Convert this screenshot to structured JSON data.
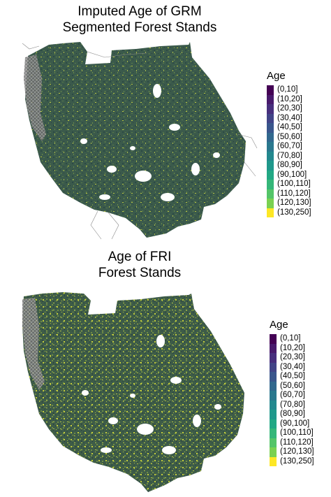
{
  "top_panel": {
    "title_line1": "Imputed Age of GRM",
    "title_line2": "Segmented Forest Stands"
  },
  "bottom_panel": {
    "title_line1": "Age of FRI",
    "title_line2": "Forest Stands"
  },
  "legend": {
    "title": "Age",
    "items": [
      {
        "label": "(0,10]",
        "color": "#440154"
      },
      {
        "label": "(10,20]",
        "color": "#481a6c"
      },
      {
        "label": "(20,30]",
        "color": "#472f7d"
      },
      {
        "label": "(30,40]",
        "color": "#414487"
      },
      {
        "label": "(40,50]",
        "color": "#39568c"
      },
      {
        "label": "(50,60]",
        "color": "#31688e"
      },
      {
        "label": "(60,70]",
        "color": "#2a788e"
      },
      {
        "label": "(70,80]",
        "color": "#23888e"
      },
      {
        "label": "(80,90]",
        "color": "#1f988b"
      },
      {
        "label": "(90,100]",
        "color": "#22a884"
      },
      {
        "label": "(100,110]",
        "color": "#35b779"
      },
      {
        "label": "(110,120]",
        "color": "#54c568"
      },
      {
        "label": "(120,130]",
        "color": "#7ad151"
      },
      {
        "label": "(130,250]",
        "color": "#fde725"
      }
    ]
  },
  "map_colors": {
    "base": "#3b5a4b",
    "dark": "#2c4a45",
    "mid_green": "#5a7a4a",
    "yellow": "#b9c540",
    "grey_lines": "#8a8a8a"
  }
}
